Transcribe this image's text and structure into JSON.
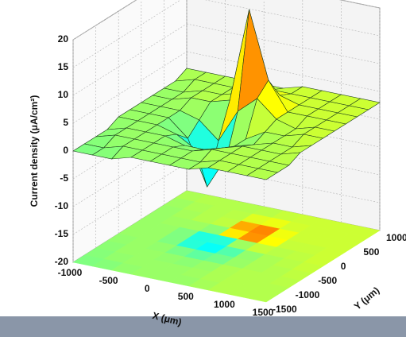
{
  "chart_data": {
    "type": "surface3d",
    "zlabel": "Current density  (μA/cm²)",
    "xlabel": "X (μm)",
    "ylabel": "Y (μm)",
    "x": [
      -1000,
      -750,
      -500,
      -250,
      0,
      250,
      500,
      750,
      1000,
      1250,
      1500
    ],
    "y": [
      -1500,
      -1250,
      -1000,
      -750,
      -500,
      -250,
      0,
      250,
      500,
      750,
      1000
    ],
    "z": [
      [
        0,
        0,
        0,
        1,
        1,
        1,
        1,
        2,
        2,
        2,
        2
      ],
      [
        0,
        0,
        1,
        1,
        1,
        1,
        1,
        2,
        2,
        2,
        2
      ],
      [
        0,
        1,
        1,
        1,
        1,
        1,
        2,
        2,
        2,
        2,
        2
      ],
      [
        0,
        1,
        1,
        1,
        0,
        0,
        1,
        2,
        2,
        2,
        3
      ],
      [
        1,
        1,
        1,
        0,
        -2,
        -3,
        0,
        1,
        2,
        2,
        3
      ],
      [
        1,
        1,
        1,
        -2,
        -10,
        -4,
        0,
        2,
        2,
        3,
        3
      ],
      [
        1,
        1,
        1,
        0,
        -3,
        3,
        6,
        3,
        2,
        3,
        3
      ],
      [
        1,
        1,
        2,
        2,
        3,
        20,
        8,
        3,
        3,
        3,
        3
      ],
      [
        1,
        1,
        2,
        2,
        3,
        7,
        4,
        3,
        3,
        3,
        3
      ],
      [
        1,
        2,
        2,
        2,
        2,
        3,
        3,
        3,
        3,
        3,
        3
      ],
      [
        2,
        2,
        2,
        2,
        2,
        2,
        3,
        3,
        3,
        3,
        3
      ]
    ],
    "xlim": [
      -1000,
      1500
    ],
    "ylim": [
      -1500,
      1000
    ],
    "zlim": [
      -20,
      20
    ],
    "xticks": [
      -1000,
      -500,
      0,
      500,
      1000,
      1500
    ],
    "yticks": [
      -1500,
      -1000,
      -500,
      0,
      500,
      1000
    ],
    "zticks": [
      -20,
      -15,
      -10,
      -5,
      0,
      5,
      10,
      15,
      20
    ],
    "colormap": "jet",
    "grid": true
  }
}
